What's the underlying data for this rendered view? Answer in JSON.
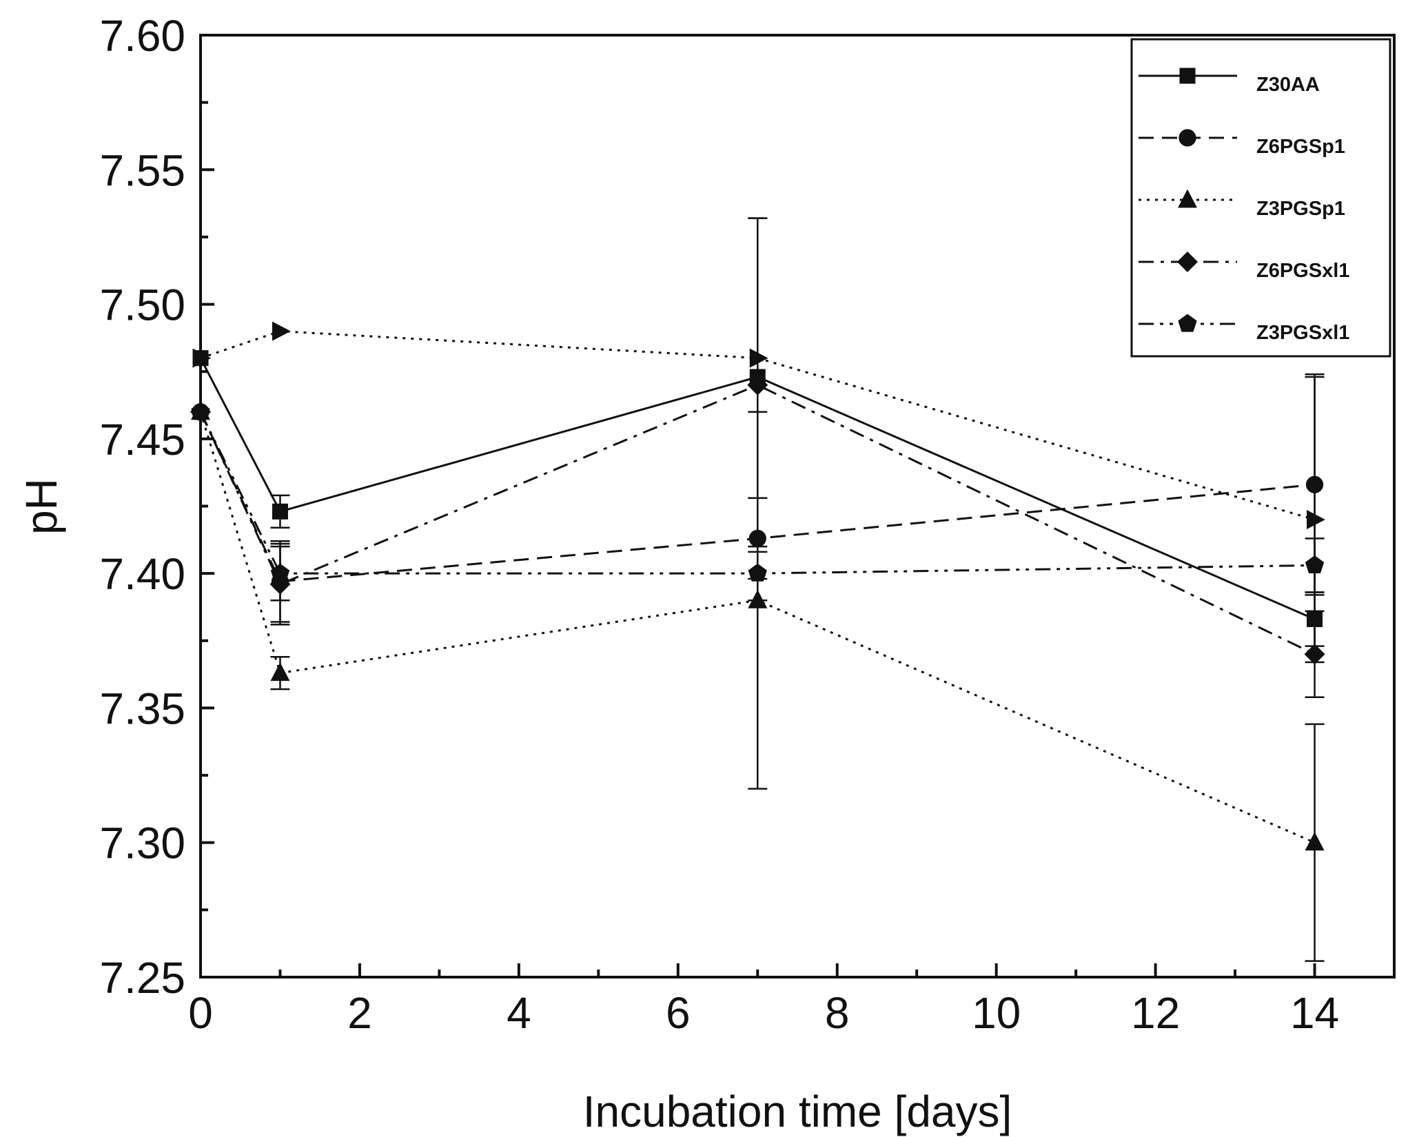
{
  "chart_data": {
    "type": "line",
    "title": "",
    "xlabel": "Incubation time [days]",
    "ylabel": "pH",
    "xlim": [
      0,
      15
    ],
    "ylim": [
      7.25,
      7.6
    ],
    "xticks": [
      "0",
      "2",
      "4",
      "6",
      "8",
      "10",
      "12",
      "14"
    ],
    "xtick_values": [
      0,
      2,
      4,
      6,
      8,
      10,
      12,
      14
    ],
    "yticks": [
      "7.25",
      "7.30",
      "7.35",
      "7.40",
      "7.45",
      "7.50",
      "7.55",
      "7.60"
    ],
    "ytick_values": [
      7.25,
      7.3,
      7.35,
      7.4,
      7.45,
      7.5,
      7.55,
      7.6
    ],
    "legend_position": "top-right",
    "x": [
      0,
      1,
      7,
      14
    ],
    "series": [
      {
        "name": "Z30AA",
        "marker": "square",
        "dash": "solid",
        "values": [
          7.48,
          7.423,
          7.473,
          7.383
        ],
        "errors": [
          0,
          0.006,
          0,
          0.01
        ]
      },
      {
        "name": "Z6PGSp1",
        "marker": "circle",
        "dash": "dash",
        "values": [
          7.46,
          7.397,
          7.413,
          7.433
        ],
        "errors": [
          0,
          0.015,
          0.015,
          0.041
        ]
      },
      {
        "name": "Z3PGSp1",
        "marker": "triangle-up",
        "dash": "dot",
        "values": [
          7.46,
          7.363,
          7.39,
          7.3
        ],
        "errors": [
          0,
          0.006,
          0.07,
          0.044
        ]
      },
      {
        "name": "Z6PGSxl1",
        "marker": "diamond",
        "dash": "dashdot",
        "values": [
          7.46,
          7.396,
          7.47,
          7.37
        ],
        "errors": [
          0,
          0.015,
          0.062,
          0.016
        ]
      },
      {
        "name": "Z3PGSxl1",
        "marker": "pentagon",
        "dash": "dashdotdot",
        "values": [
          7.46,
          7.4,
          7.4,
          7.403
        ],
        "errors": [
          0,
          0.01,
          0.01,
          0.01
        ]
      },
      {
        "name": "",
        "marker": "triangle-right",
        "dash": "dot",
        "values": [
          7.48,
          7.49,
          7.48,
          7.42
        ],
        "errors": [
          0,
          0,
          0.052,
          0.053
        ]
      }
    ]
  }
}
